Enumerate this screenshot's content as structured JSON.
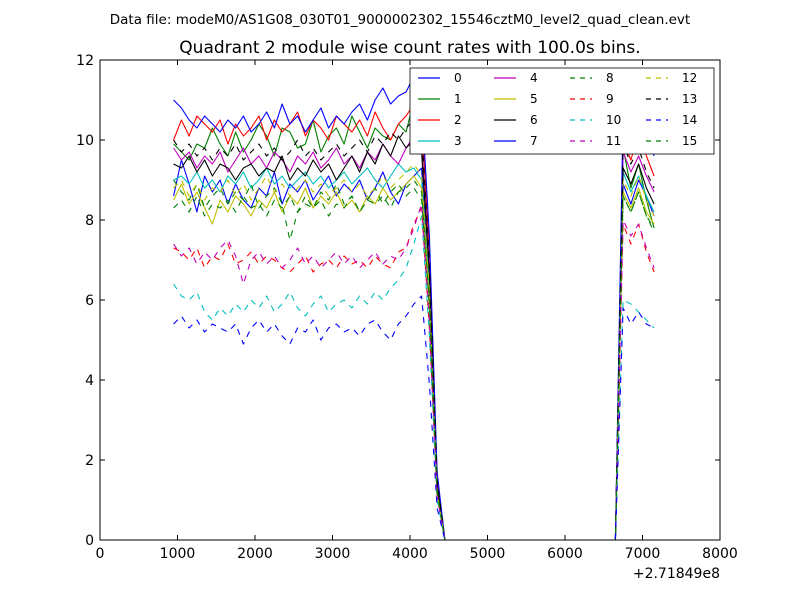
{
  "figure": {
    "suptitle": "Data file: modeM0/AS1G08_030T01_9000002302_15546cztM0_level2_quad_clean.evt"
  },
  "chart_data": {
    "type": "line",
    "title": "Quadrant 2 module wise count rates with 100.0s bins.",
    "xlabel": "",
    "ylabel": "",
    "x_offset_label": "+2.71849e8",
    "xlim": [
      0,
      8000
    ],
    "ylim": [
      0,
      12
    ],
    "xticks": [
      0,
      1000,
      2000,
      3000,
      4000,
      5000,
      6000,
      7000,
      8000
    ],
    "yticks": [
      0,
      2,
      4,
      6,
      8,
      10,
      12
    ],
    "grid": false,
    "legend": {
      "placement": "top-right",
      "columns": 4
    },
    "x": [
      950,
      1050,
      1150,
      1250,
      1350,
      1450,
      1550,
      1650,
      1750,
      1850,
      1950,
      2050,
      2150,
      2250,
      2350,
      2450,
      2550,
      2650,
      2750,
      2850,
      2950,
      3050,
      3150,
      3250,
      3350,
      3450,
      3550,
      3650,
      3750,
      3850,
      3950,
      4050,
      4150,
      4250,
      4350,
      4450,
      4550,
      4650,
      4750,
      4850,
      4950,
      5050,
      5150,
      5250,
      5350,
      5450,
      5550,
      5650,
      5750,
      5850,
      5950,
      6050,
      6150,
      6250,
      6350,
      6450,
      6550,
      6650,
      6750,
      6850,
      6950,
      7050,
      7150
    ],
    "series": [
      {
        "name": "0",
        "color": "#0000ff",
        "dash": "solid",
        "values": [
          8.6,
          9.5,
          8.9,
          8.2,
          9.1,
          8.7,
          9.0,
          8.4,
          8.9,
          8.5,
          8.3,
          8.8,
          8.6,
          9.2,
          8.4,
          8.9,
          8.7,
          9.0,
          8.5,
          8.8,
          9.1,
          8.6,
          8.9,
          8.7,
          9.0,
          8.5,
          8.8,
          9.2,
          8.7,
          8.4,
          8.9,
          9.1,
          9.3,
          6.0,
          1.2,
          0,
          0,
          0,
          0,
          0,
          0,
          0,
          0,
          0,
          0,
          0,
          0,
          0,
          0,
          0,
          0,
          0,
          0,
          0,
          0,
          0,
          0,
          0,
          8.9,
          8.4,
          9.0,
          8.6,
          8.1
        ]
      },
      {
        "name": "1",
        "color": "#008000",
        "dash": "solid",
        "values": [
          9.9,
          9.7,
          9.5,
          9.9,
          9.8,
          10.3,
          9.9,
          9.6,
          10.2,
          9.7,
          10.0,
          10.4,
          10.1,
          9.6,
          10.3,
          10.2,
          9.8,
          9.9,
          10.5,
          9.7,
          10.1,
          10.3,
          9.9,
          10.6,
          10.2,
          9.8,
          10.3,
          10.1,
          10.0,
          10.4,
          10.2,
          11.0,
          10.6,
          7.0,
          1.5,
          0,
          0,
          0,
          0,
          0,
          0,
          0,
          0,
          0,
          0,
          0,
          0,
          0,
          0,
          0,
          0,
          0,
          0,
          0,
          0,
          0,
          0,
          0,
          9.8,
          8.8,
          9.4,
          8.5,
          7.8
        ]
      },
      {
        "name": "2",
        "color": "#ff0000",
        "dash": "solid",
        "values": [
          10.0,
          10.5,
          10.1,
          10.6,
          10.4,
          10.2,
          10.5,
          9.9,
          10.4,
          10.1,
          10.3,
          10.6,
          10.0,
          10.5,
          10.2,
          10.4,
          10.7,
          10.1,
          10.5,
          10.3,
          10.0,
          10.6,
          10.4,
          10.2,
          10.5,
          10.1,
          10.7,
          10.3,
          10.0,
          10.4,
          10.6,
          10.9,
          10.5,
          7.3,
          1.6,
          0,
          0,
          0,
          0,
          0,
          0,
          0,
          0,
          0,
          0,
          0,
          0,
          0,
          0,
          0,
          0,
          0,
          0,
          0,
          0,
          0,
          0,
          0,
          10.0,
          9.5,
          10.2,
          9.6,
          9.1
        ]
      },
      {
        "name": "3",
        "color": "#00bfbf",
        "dash": "solid",
        "values": [
          9.0,
          9.1,
          8.9,
          9.2,
          8.8,
          9.0,
          8.7,
          9.1,
          8.9,
          9.2,
          8.8,
          9.0,
          9.3,
          8.9,
          9.1,
          8.8,
          9.0,
          9.2,
          8.9,
          9.1,
          8.8,
          9.0,
          9.2,
          8.9,
          9.1,
          9.3,
          9.0,
          8.8,
          9.1,
          9.4,
          9.2,
          9.3,
          9.0,
          6.2,
          1.3,
          0,
          0,
          0,
          0,
          0,
          0,
          0,
          0,
          0,
          0,
          0,
          0,
          0,
          0,
          0,
          0,
          0,
          0,
          0,
          0,
          0,
          0,
          0,
          9.2,
          8.7,
          9.1,
          8.6,
          8.2
        ]
      },
      {
        "name": "4",
        "color": "#bf00bf",
        "dash": "solid",
        "values": [
          9.8,
          9.5,
          9.7,
          9.3,
          9.6,
          9.4,
          9.7,
          9.2,
          9.5,
          9.8,
          9.4,
          9.6,
          9.3,
          9.7,
          9.5,
          9.2,
          9.6,
          9.4,
          9.7,
          9.3,
          9.5,
          9.8,
          9.4,
          9.6,
          9.3,
          9.7,
          9.5,
          9.9,
          9.6,
          9.4,
          9.8,
          10.1,
          9.9,
          6.8,
          1.4,
          0,
          0,
          0,
          0,
          0,
          0,
          0,
          0,
          0,
          0,
          0,
          0,
          0,
          0,
          0,
          0,
          0,
          0,
          0,
          0,
          0,
          0,
          0,
          9.7,
          9.2,
          9.6,
          9.1,
          8.7
        ]
      },
      {
        "name": "5",
        "color": "#bfbf00",
        "dash": "solid",
        "values": [
          8.5,
          8.9,
          8.4,
          8.7,
          8.3,
          7.9,
          8.5,
          8.2,
          8.6,
          8.4,
          8.1,
          8.5,
          8.3,
          8.7,
          8.2,
          8.6,
          8.4,
          8.8,
          8.3,
          8.6,
          8.4,
          8.7,
          8.3,
          8.5,
          8.2,
          8.6,
          8.4,
          8.8,
          8.5,
          8.7,
          8.9,
          9.1,
          8.8,
          6.0,
          1.2,
          0,
          0,
          0,
          0,
          0,
          0,
          0,
          0,
          0,
          0,
          0,
          0,
          0,
          0,
          0,
          0,
          0,
          0,
          0,
          0,
          0,
          0,
          0,
          8.7,
          8.3,
          8.8,
          8.2,
          7.9
        ]
      },
      {
        "name": "6",
        "color": "#000000",
        "dash": "solid",
        "values": [
          9.4,
          9.3,
          9.6,
          9.2,
          9.5,
          9.1,
          9.4,
          9.3,
          9.0,
          9.3,
          9.4,
          9.1,
          9.3,
          9.2,
          9.6,
          9.0,
          9.3,
          9.1,
          9.5,
          9.2,
          9.4,
          9.0,
          9.3,
          9.6,
          9.2,
          9.7,
          9.4,
          9.9,
          9.6,
          10.1,
          9.8,
          10.0,
          9.7,
          6.6,
          1.4,
          0,
          0,
          0,
          0,
          0,
          0,
          0,
          0,
          0,
          0,
          0,
          0,
          0,
          0,
          0,
          0,
          0,
          0,
          0,
          0,
          0,
          0,
          0,
          9.3,
          8.9,
          9.4,
          8.8,
          8.4
        ]
      },
      {
        "name": "7",
        "color": "#0000ff",
        "dash": "solid",
        "values": [
          11.0,
          10.8,
          10.5,
          10.3,
          10.6,
          10.4,
          10.2,
          10.5,
          10.3,
          10.6,
          10.2,
          10.4,
          10.7,
          10.3,
          10.9,
          10.4,
          10.6,
          10.2,
          10.5,
          10.8,
          10.3,
          10.6,
          10.4,
          10.7,
          10.9,
          10.5,
          11.0,
          11.3,
          10.9,
          11.1,
          11.2,
          11.6,
          11.0,
          7.6,
          1.7,
          0,
          0,
          0,
          0,
          0,
          0,
          0,
          0,
          0,
          0,
          0,
          0,
          0,
          0,
          0,
          0,
          0,
          0,
          0,
          0,
          0,
          0,
          0,
          10.7,
          10.9,
          10.7,
          10.2,
          9.6
        ]
      },
      {
        "name": "8",
        "color": "#008000",
        "dash": "dashed",
        "values": [
          9.0,
          8.7,
          8.5,
          8.9,
          8.3,
          8.6,
          8.8,
          8.4,
          8.7,
          8.5,
          8.9,
          8.3,
          8.6,
          8.8,
          8.4,
          7.5,
          8.2,
          8.6,
          8.3,
          8.7,
          8.5,
          8.9,
          8.4,
          8.6,
          8.2,
          8.5,
          8.8,
          8.4,
          8.7,
          8.9,
          8.6,
          8.8,
          8.5,
          5.8,
          1.2,
          0,
          0,
          0,
          0,
          0,
          0,
          0,
          0,
          0,
          0,
          0,
          0,
          0,
          0,
          0,
          0,
          0,
          0,
          0,
          0,
          0,
          0,
          0,
          8.6,
          8.2,
          8.7,
          8.1,
          7.8
        ]
      },
      {
        "name": "9",
        "color": "#ff0000",
        "dash": "dashed",
        "values": [
          7.3,
          7.2,
          7.0,
          7.3,
          6.8,
          7.1,
          7.0,
          7.4,
          6.9,
          7.0,
          7.2,
          6.9,
          7.1,
          7.0,
          6.8,
          6.7,
          6.9,
          7.1,
          6.7,
          6.9,
          7.0,
          6.8,
          7.1,
          6.9,
          7.0,
          6.8,
          7.1,
          6.9,
          6.8,
          7.2,
          7.3,
          7.9,
          8.3,
          5.3,
          1.1,
          0,
          0,
          0,
          0,
          0,
          0,
          0,
          0,
          0,
          0,
          0,
          0,
          0,
          0,
          0,
          0,
          0,
          0,
          0,
          0,
          0,
          0,
          0,
          7.9,
          7.4,
          7.9,
          7.2,
          6.7
        ]
      },
      {
        "name": "10",
        "color": "#00bfbf",
        "dash": "dashed",
        "values": [
          6.4,
          6.1,
          6.0,
          6.2,
          5.7,
          5.5,
          5.8,
          5.6,
          5.9,
          5.7,
          6.0,
          5.8,
          6.1,
          5.7,
          5.9,
          6.2,
          5.8,
          5.6,
          5.9,
          6.1,
          5.7,
          5.9,
          6.0,
          5.8,
          6.1,
          5.9,
          6.2,
          6.0,
          6.3,
          6.5,
          6.8,
          7.4,
          8.1,
          5.1,
          1.0,
          0,
          0,
          0,
          0,
          0,
          0,
          0,
          0,
          0,
          0,
          0,
          0,
          0,
          0,
          0,
          0,
          0,
          0,
          0,
          0,
          0,
          0,
          0,
          6.0,
          5.9,
          5.7,
          5.5,
          5.3
        ]
      },
      {
        "name": "11",
        "color": "#bf00bf",
        "dash": "dashed",
        "values": [
          7.4,
          7.1,
          7.3,
          6.9,
          7.2,
          7.0,
          7.3,
          7.5,
          7.1,
          6.4,
          7.0,
          7.2,
          6.9,
          7.1,
          6.8,
          7.0,
          7.3,
          6.9,
          7.1,
          6.8,
          7.0,
          7.2,
          6.9,
          7.1,
          6.8,
          7.0,
          7.2,
          6.9,
          7.1,
          7.0,
          7.3,
          7.8,
          8.4,
          5.5,
          1.1,
          0,
          0,
          0,
          0,
          0,
          0,
          0,
          0,
          0,
          0,
          0,
          0,
          0,
          0,
          0,
          0,
          0,
          0,
          0,
          0,
          0,
          0,
          0,
          8.0,
          7.6,
          7.9,
          7.3,
          6.8
        ]
      },
      {
        "name": "12",
        "color": "#bfbf00",
        "dash": "dashed",
        "values": [
          8.8,
          9.0,
          8.6,
          8.9,
          8.5,
          8.8,
          8.7,
          9.0,
          8.6,
          8.9,
          8.5,
          8.8,
          9.1,
          8.7,
          8.9,
          8.6,
          8.8,
          9.0,
          8.7,
          8.9,
          8.6,
          8.8,
          9.0,
          8.7,
          8.9,
          8.6,
          8.8,
          9.1,
          8.8,
          9.0,
          9.2,
          9.4,
          9.1,
          6.2,
          1.2,
          0,
          0,
          0,
          0,
          0,
          0,
          0,
          0,
          0,
          0,
          0,
          0,
          0,
          0,
          0,
          0,
          0,
          0,
          0,
          0,
          0,
          0,
          0,
          9.0,
          8.6,
          9.1,
          8.5,
          8.1
        ]
      },
      {
        "name": "13",
        "color": "#000000",
        "dash": "dashed",
        "values": [
          10.0,
          9.7,
          9.9,
          9.6,
          9.8,
          9.5,
          9.8,
          9.6,
          9.9,
          9.5,
          9.7,
          9.9,
          9.6,
          9.8,
          9.5,
          9.7,
          10.0,
          9.6,
          9.8,
          9.5,
          9.7,
          9.9,
          9.6,
          9.8,
          10.0,
          9.7,
          10.1,
          9.9,
          10.2,
          10.0,
          10.3,
          10.5,
          10.2,
          7.0,
          1.5,
          0,
          0,
          0,
          0,
          0,
          0,
          0,
          0,
          0,
          0,
          0,
          0,
          0,
          0,
          0,
          0,
          0,
          0,
          0,
          0,
          0,
          0,
          0,
          9.9,
          9.4,
          9.8,
          9.2,
          8.8
        ]
      },
      {
        "name": "14",
        "color": "#0000ff",
        "dash": "dashed",
        "values": [
          5.4,
          5.6,
          5.3,
          5.5,
          5.2,
          5.4,
          5.3,
          5.2,
          5.4,
          4.9,
          5.3,
          5.5,
          5.2,
          5.4,
          5.1,
          4.9,
          5.3,
          5.2,
          5.5,
          5.0,
          5.3,
          5.4,
          5.2,
          5.3,
          5.1,
          5.4,
          5.5,
          5.2,
          5.0,
          5.4,
          5.6,
          5.9,
          6.1,
          3.9,
          0.8,
          0,
          0,
          0,
          0,
          0,
          0,
          0,
          0,
          0,
          0,
          0,
          0,
          0,
          0,
          0,
          0,
          0,
          0,
          0,
          0,
          0,
          0,
          0,
          5.8,
          5.4,
          5.7,
          5.4,
          5.3
        ]
      },
      {
        "name": "15",
        "color": "#008000",
        "dash": "dashed",
        "values": [
          8.3,
          8.5,
          8.2,
          8.6,
          8.1,
          8.4,
          8.3,
          8.5,
          8.2,
          8.6,
          8.3,
          8.4,
          8.1,
          8.5,
          8.3,
          8.6,
          8.2,
          8.4,
          8.3,
          8.5,
          8.1,
          8.4,
          8.3,
          8.6,
          8.2,
          8.5,
          8.4,
          8.6,
          8.3,
          8.7,
          8.8,
          9.0,
          8.7,
          5.9,
          1.2,
          0,
          0,
          0,
          0,
          0,
          0,
          0,
          0,
          0,
          0,
          0,
          0,
          0,
          0,
          0,
          0,
          0,
          0,
          0,
          0,
          0,
          0,
          0,
          8.6,
          8.2,
          8.7,
          8.1,
          7.7
        ]
      }
    ]
  }
}
